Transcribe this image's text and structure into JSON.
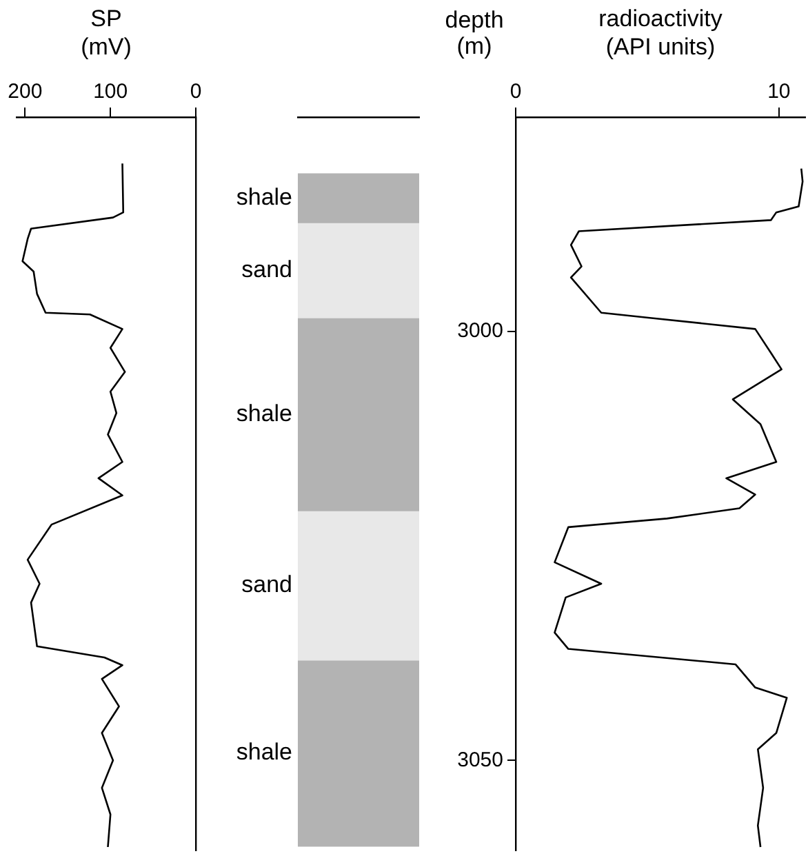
{
  "chart_data": [
    {
      "type": "line",
      "xlabel": "SP (mV)",
      "xlim": [
        210,
        0
      ],
      "xticks": [
        200,
        100,
        0
      ],
      "ylim": [
        3060.5,
        2975
      ],
      "tick_labels": "x",
      "marker": "none",
      "line_style": "solid",
      "series": [
        {
          "color": "#000000",
          "x": [
            86,
            85,
            97,
            193,
            197,
            203,
            190,
            186,
            176,
            124,
            86,
            100,
            83,
            100,
            93,
            103,
            86,
            114,
            86,
            169,
            197,
            183,
            193,
            186,
            107,
            86,
            110,
            90,
            110,
            97,
            110,
            100,
            103
          ],
          "values": [
            2980.4,
            2986.1,
            2986.7,
            2988.0,
            2989.2,
            2991.8,
            2993.0,
            2995.6,
            2997.8,
            2998.0,
            2999.7,
            3001.9,
            3004.7,
            3007.0,
            3009.5,
            3012.0,
            3015.2,
            3017.1,
            3019.1,
            3022.5,
            3026.6,
            3029.4,
            3031.6,
            3036.7,
            3038.0,
            3038.9,
            3040.5,
            3043.7,
            3046.8,
            3050.0,
            3053.2,
            3056.3,
            3060.1
          ]
        }
      ]
    },
    {
      "type": "bar",
      "categories": [
        null
      ],
      "ylim": [
        3060.5,
        2975
      ],
      "tick_labels": false,
      "series": [
        {
          "name": "shale",
          "color": "#b3b3b3",
          "values": [
            5.7
          ],
          "base": [
            2981.6
          ]
        },
        {
          "name": "sand",
          "color": "#e8e8e8",
          "values": [
            11.1
          ],
          "base": [
            2987.3
          ]
        },
        {
          "name": "shale",
          "color": "#b3b3b3",
          "values": [
            22.5
          ],
          "base": [
            2998.4
          ]
        },
        {
          "name": "sand",
          "color": "#e8e8e8",
          "values": [
            17.4
          ],
          "base": [
            3020.9
          ]
        },
        {
          "name": "shale",
          "color": "#b3b3b3",
          "values": [
            21.7
          ],
          "base": [
            3038.3
          ]
        }
      ]
    },
    {
      "type": "line",
      "xlabel": "radioactivity (API units)",
      "ylabel": "depth (m)",
      "xlim": [
        0,
        11
      ],
      "xticks": [
        0,
        10
      ],
      "ylim": [
        3060.5,
        2975
      ],
      "yticks": [
        3000,
        3050
      ],
      "marker": "none",
      "line_style": "solid",
      "series": [
        {
          "color": "#000000",
          "x": [
            10.85,
            10.9,
            10.75,
            9.9,
            9.7,
            2.4,
            2.1,
            2.5,
            2.1,
            3.25,
            5.1,
            9.1,
            9.7,
            10.1,
            8.25,
            9.3,
            9.9,
            8.0,
            9.1,
            8.5,
            5.75,
            2.0,
            1.48,
            3.25,
            1.9,
            1.48,
            2.0,
            8.35,
            9.1,
            10.3,
            9.9,
            9.2,
            9.4,
            9.2,
            9.3
          ],
          "values": [
            2981.0,
            2982.5,
            2985.4,
            2986.1,
            2987.0,
            2988.3,
            2989.9,
            2992.4,
            2993.7,
            2997.8,
            2998.4,
            2999.7,
            3002.5,
            3004.4,
            3007.9,
            3010.8,
            3015.2,
            3017.1,
            3019.0,
            3020.6,
            3021.8,
            3022.8,
            3026.9,
            3029.4,
            3031.0,
            3035.1,
            3037.0,
            3038.8,
            3041.5,
            3042.7,
            3046.8,
            3048.7,
            3053.2,
            3057.6,
            3060.1
          ]
        }
      ]
    }
  ]
}
